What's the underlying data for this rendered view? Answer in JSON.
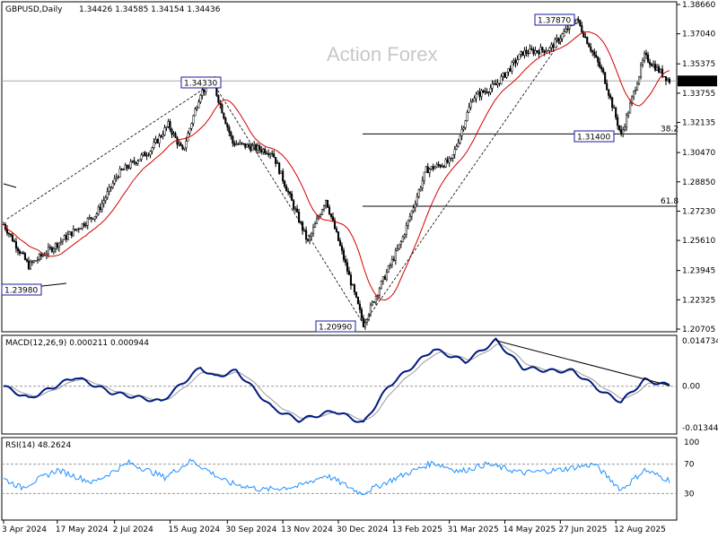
{
  "chart_data": {
    "type": "candlestick",
    "symbol_label": "GBPUSD,Daily",
    "ohlc_label": "1.34426 1.34585 1.34154 1.34436",
    "watermark": "Action Forex",
    "current_price_label": "1.34436",
    "price_axis": {
      "ylim": [
        1.20705,
        1.3866
      ],
      "ticks": [
        "1.38660",
        "1.37040",
        "1.35375",
        "1.33755",
        "1.32135",
        "1.30470",
        "1.28850",
        "1.27230",
        "1.25610",
        "1.23945",
        "1.22325",
        "1.20705"
      ]
    },
    "date_labels": [
      "3 Apr 2024",
      "17 May 2024",
      "2 Jul 2024",
      "15 Aug 2024",
      "30 Sep 2024",
      "13 Nov 2024",
      "30 Dec 2024",
      "13 Feb 2025",
      "31 Mar 2025",
      "14 May 2025",
      "27 Jun 2025",
      "12 Aug 2025"
    ],
    "price_labels": [
      {
        "text": "1.34330",
        "value": 1.3433
      },
      {
        "text": "1.37870",
        "value": 1.3787
      },
      {
        "text": "1.31400",
        "value": 1.314
      },
      {
        "text": "1.20990",
        "value": 1.2099
      },
      {
        "text": "1.23980",
        "value": 1.2398
      }
    ],
    "fib_levels": [
      {
        "label": "38.2",
        "value": 1.315
      },
      {
        "label": "61.8",
        "value": 1.275
      }
    ],
    "horizontal_line": 1.3443,
    "pivots": [
      {
        "t": 0,
        "p": 1.265
      },
      {
        "t": 14,
        "p": 1.242
      },
      {
        "t": 52,
        "p": 1.271
      },
      {
        "t": 64,
        "p": 1.293
      },
      {
        "t": 82,
        "p": 1.306
      },
      {
        "t": 92,
        "p": 1.32
      },
      {
        "t": 100,
        "p": 1.305
      },
      {
        "t": 110,
        "p": 1.338
      },
      {
        "t": 117,
        "p": 1.3433
      },
      {
        "t": 128,
        "p": 1.31
      },
      {
        "t": 150,
        "p": 1.305
      },
      {
        "t": 170,
        "p": 1.255
      },
      {
        "t": 180,
        "p": 1.279
      },
      {
        "t": 201,
        "p": 1.2099
      },
      {
        "t": 210,
        "p": 1.23
      },
      {
        "t": 222,
        "p": 1.255
      },
      {
        "t": 236,
        "p": 1.295
      },
      {
        "t": 250,
        "p": 1.3
      },
      {
        "t": 262,
        "p": 1.335
      },
      {
        "t": 275,
        "p": 1.342
      },
      {
        "t": 290,
        "p": 1.36
      },
      {
        "t": 305,
        "p": 1.362
      },
      {
        "t": 320,
        "p": 1.3787
      },
      {
        "t": 335,
        "p": 1.348
      },
      {
        "t": 345,
        "p": 1.314
      },
      {
        "t": 358,
        "p": 1.358
      },
      {
        "t": 372,
        "p": 1.3443
      }
    ],
    "macd": {
      "label": "MACD(12,26,9) 0.000211 0.000944",
      "ylim": [
        -0.013442,
        0.014734
      ],
      "ticks": [
        "0.014734",
        "0.00",
        "-0.013442"
      ],
      "points": [
        {
          "t": 0,
          "v": 0.0
        },
        {
          "t": 14,
          "v": -0.004
        },
        {
          "t": 40,
          "v": 0.003
        },
        {
          "t": 60,
          "v": -0.002
        },
        {
          "t": 88,
          "v": -0.005
        },
        {
          "t": 110,
          "v": 0.006
        },
        {
          "t": 118,
          "v": 0.003
        },
        {
          "t": 130,
          "v": 0.005
        },
        {
          "t": 150,
          "v": -0.007
        },
        {
          "t": 165,
          "v": -0.011
        },
        {
          "t": 185,
          "v": -0.008
        },
        {
          "t": 201,
          "v": -0.012
        },
        {
          "t": 215,
          "v": 0.0
        },
        {
          "t": 240,
          "v": 0.012
        },
        {
          "t": 258,
          "v": 0.008
        },
        {
          "t": 275,
          "v": 0.0148
        },
        {
          "t": 290,
          "v": 0.006
        },
        {
          "t": 305,
          "v": 0.005
        },
        {
          "t": 318,
          "v": 0.005
        },
        {
          "t": 335,
          "v": -0.002
        },
        {
          "t": 345,
          "v": -0.005
        },
        {
          "t": 358,
          "v": 0.002
        },
        {
          "t": 372,
          "v": 0.0002
        }
      ]
    },
    "rsi": {
      "label": "RSI(14) 48.2624",
      "ylim": [
        0,
        100
      ],
      "ticks": [
        "100",
        "70",
        "30",
        "0"
      ],
      "points": [
        {
          "t": 0,
          "v": 50
        },
        {
          "t": 10,
          "v": 38
        },
        {
          "t": 30,
          "v": 62
        },
        {
          "t": 50,
          "v": 45
        },
        {
          "t": 70,
          "v": 72
        },
        {
          "t": 90,
          "v": 52
        },
        {
          "t": 105,
          "v": 75
        },
        {
          "t": 125,
          "v": 45
        },
        {
          "t": 145,
          "v": 35
        },
        {
          "t": 165,
          "v": 40
        },
        {
          "t": 180,
          "v": 55
        },
        {
          "t": 200,
          "v": 30
        },
        {
          "t": 220,
          "v": 52
        },
        {
          "t": 240,
          "v": 72
        },
        {
          "t": 255,
          "v": 60
        },
        {
          "t": 270,
          "v": 70
        },
        {
          "t": 290,
          "v": 58
        },
        {
          "t": 310,
          "v": 62
        },
        {
          "t": 330,
          "v": 70
        },
        {
          "t": 345,
          "v": 35
        },
        {
          "t": 358,
          "v": 62
        },
        {
          "t": 372,
          "v": 48
        }
      ]
    }
  }
}
